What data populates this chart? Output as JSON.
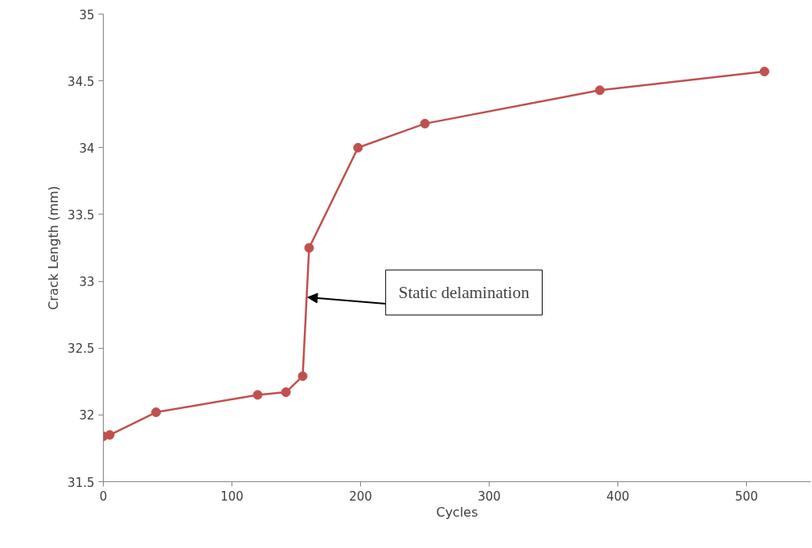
{
  "chart_data": {
    "type": "line",
    "xlabel": "Cycles",
    "ylabel": "Crack Length (mm)",
    "x": [
      0,
      5,
      41,
      120,
      142,
      155,
      160,
      198,
      250,
      386,
      514
    ],
    "series": [
      {
        "color": "#c0504d",
        "values": [
          31.84,
          31.85,
          32.02,
          32.15,
          32.17,
          32.29,
          33.25,
          34.0,
          34.18,
          34.43,
          34.57
        ]
      }
    ],
    "xlim": [
      0,
      550
    ],
    "xticks": [
      0,
      100,
      200,
      300,
      400,
      500
    ],
    "ylim": [
      31.5,
      35
    ],
    "yticks": [
      31.5,
      32,
      32.5,
      33,
      33.5,
      34,
      34.5,
      35
    ],
    "grid": false,
    "marker": "circle",
    "line_style": "solid",
    "annotations": [
      {
        "text": "Static delamination",
        "x": 157,
        "y": 32.88
      }
    ]
  }
}
